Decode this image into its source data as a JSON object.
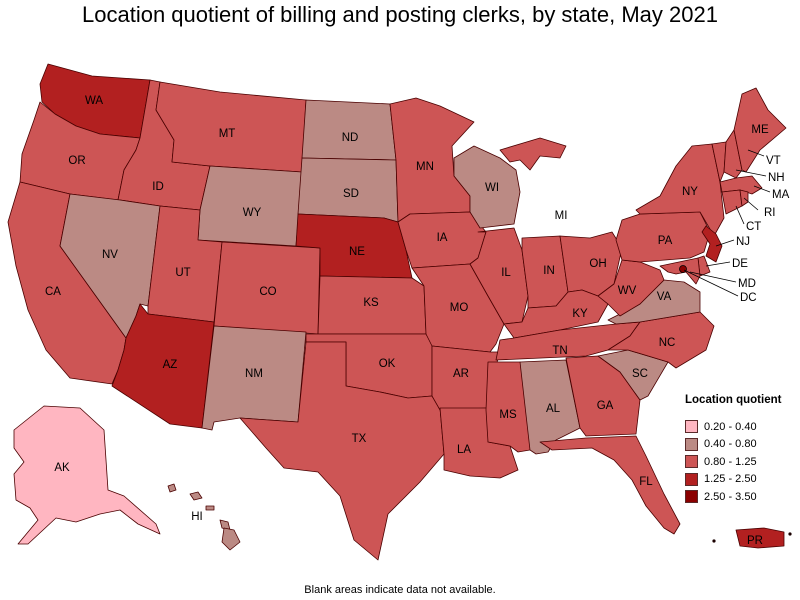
{
  "title": "Location quotient of billing and posting clerks, by state, May 2021",
  "footnote": "Blank areas indicate data not available.",
  "legend": {
    "title": "Location quotient",
    "items": [
      {
        "label": "0.20 - 0.40",
        "color": "#ffb6c1"
      },
      {
        "label": "0.40 - 0.80",
        "color": "#bb8a84"
      },
      {
        "label": "0.80 - 1.25",
        "color": "#cd5555"
      },
      {
        "label": "1.25 - 2.50",
        "color": "#b22020"
      },
      {
        "label": "2.50 - 3.50",
        "color": "#8b0000"
      }
    ]
  },
  "states": {
    "WA": {
      "label": "WA",
      "class": 3
    },
    "OR": {
      "label": "OR",
      "class": 2
    },
    "CA": {
      "label": "CA",
      "class": 2
    },
    "ID": {
      "label": "ID",
      "class": 2
    },
    "NV": {
      "label": "NV",
      "class": 1
    },
    "MT": {
      "label": "MT",
      "class": 2
    },
    "WY": {
      "label": "WY",
      "class": 1
    },
    "UT": {
      "label": "UT",
      "class": 2
    },
    "AZ": {
      "label": "AZ",
      "class": 3
    },
    "CO": {
      "label": "CO",
      "class": 2
    },
    "NM": {
      "label": "NM",
      "class": 1
    },
    "ND": {
      "label": "ND",
      "class": 1
    },
    "SD": {
      "label": "SD",
      "class": 1
    },
    "NE": {
      "label": "NE",
      "class": 3
    },
    "KS": {
      "label": "KS",
      "class": 2
    },
    "OK": {
      "label": "OK",
      "class": 2
    },
    "TX": {
      "label": "TX",
      "class": 2
    },
    "MN": {
      "label": "MN",
      "class": 2
    },
    "IA": {
      "label": "IA",
      "class": 2
    },
    "MO": {
      "label": "MO",
      "class": 2
    },
    "AR": {
      "label": "AR",
      "class": 2
    },
    "LA": {
      "label": "LA",
      "class": 2
    },
    "WI": {
      "label": "WI",
      "class": 1
    },
    "IL": {
      "label": "IL",
      "class": 2
    },
    "MI": {
      "label": "MI",
      "class": 2
    },
    "IN": {
      "label": "IN",
      "class": 2
    },
    "OH": {
      "label": "OH",
      "class": 2
    },
    "KY": {
      "label": "KY",
      "class": 2
    },
    "TN": {
      "label": "TN",
      "class": 2
    },
    "MS": {
      "label": "MS",
      "class": 2
    },
    "AL": {
      "label": "AL",
      "class": 1
    },
    "GA": {
      "label": "GA",
      "class": 2
    },
    "FL": {
      "label": "FL",
      "class": 2
    },
    "SC": {
      "label": "SC",
      "class": 1
    },
    "NC": {
      "label": "NC",
      "class": 2
    },
    "VA": {
      "label": "VA",
      "class": 1
    },
    "WV": {
      "label": "WV",
      "class": 2
    },
    "PA": {
      "label": "PA",
      "class": 2
    },
    "NY": {
      "label": "NY",
      "class": 2
    },
    "ME": {
      "label": "ME",
      "class": 2
    },
    "VT": {
      "label": "VT",
      "class": 2
    },
    "NH": {
      "label": "NH",
      "class": 2
    },
    "MA": {
      "label": "MA",
      "class": 2
    },
    "RI": {
      "label": "RI",
      "class": 2
    },
    "CT": {
      "label": "CT",
      "class": 2
    },
    "NJ": {
      "label": "NJ",
      "class": 3
    },
    "DE": {
      "label": "DE",
      "class": 2
    },
    "MD": {
      "label": "MD",
      "class": 2
    },
    "DC": {
      "label": "DC",
      "class": 4
    },
    "AK": {
      "label": "AK",
      "class": 0
    },
    "HI": {
      "label": "HI",
      "class": 1
    },
    "PR": {
      "label": "PR",
      "class": 3
    }
  }
}
